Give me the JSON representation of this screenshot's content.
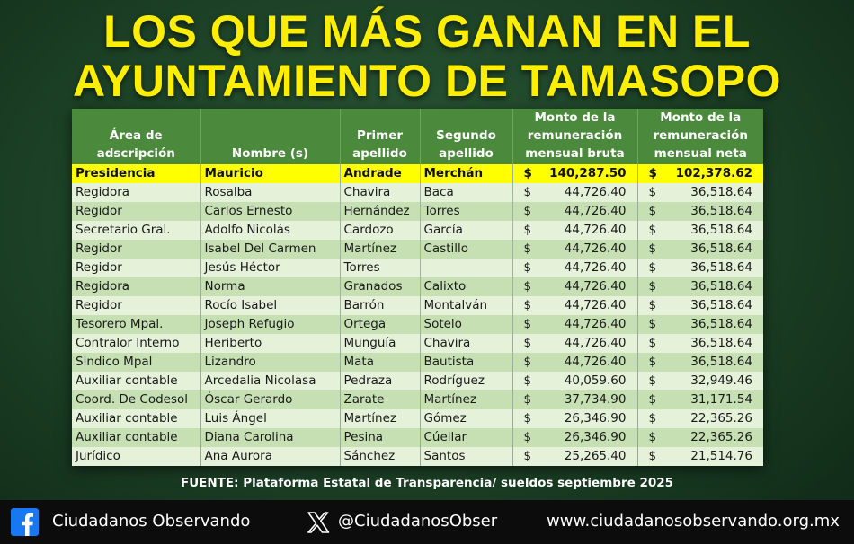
{
  "title": {
    "line1": "LOS QUE MÁS GANAN EN EL",
    "line2": "AYUNTAMIENTO DE TAMASOPO"
  },
  "table": {
    "headers": [
      "Área de adscripción",
      "Nombre (s)",
      "Primer apellido",
      "Segundo apellido",
      "Monto de la remuneración mensual bruta",
      "Monto de la remuneración mensual neta"
    ],
    "currency_symbol": "$",
    "rows": [
      {
        "area": "Presidencia",
        "nombre": "Mauricio",
        "primer": "Andrade",
        "segundo": "Merchán",
        "bruta": "140,287.50",
        "neta": "102,378.62",
        "highlight": true
      },
      {
        "area": "Regidora",
        "nombre": "Rosalba",
        "primer": "Chavira",
        "segundo": "Baca",
        "bruta": "44,726.40",
        "neta": "36,518.64"
      },
      {
        "area": "Regidor",
        "nombre": "Carlos Ernesto",
        "primer": "Hernández",
        "segundo": "Torres",
        "bruta": "44,726.40",
        "neta": "36,518.64"
      },
      {
        "area": "Secretario Gral.",
        "nombre": "Adolfo Nicolás",
        "primer": "Cardozo",
        "segundo": "García",
        "bruta": "44,726.40",
        "neta": "36,518.64"
      },
      {
        "area": "Regidor",
        "nombre": "Isabel Del Carmen",
        "primer": "Martínez",
        "segundo": "Castillo",
        "bruta": "44,726.40",
        "neta": "36,518.64"
      },
      {
        "area": "Regidor",
        "nombre": "Jesús Héctor",
        "primer": "Torres",
        "segundo": "",
        "bruta": "44,726.40",
        "neta": "36,518.64"
      },
      {
        "area": "Regidora",
        "nombre": "Norma",
        "primer": "Granados",
        "segundo": "Calixto",
        "bruta": "44,726.40",
        "neta": "36,518.64"
      },
      {
        "area": "Regidor",
        "nombre": "Rocío Isabel",
        "primer": "Barrón",
        "segundo": "Montalván",
        "bruta": "44,726.40",
        "neta": "36,518.64"
      },
      {
        "area": "Tesorero Mpal.",
        "nombre": "Joseph Refugio",
        "primer": "Ortega",
        "segundo": "Sotelo",
        "bruta": "44,726.40",
        "neta": "36,518.64"
      },
      {
        "area": "Contralor Interno",
        "nombre": "Heriberto",
        "primer": "Munguía",
        "segundo": "Chavira",
        "bruta": "44,726.40",
        "neta": "36,518.64"
      },
      {
        "area": "Sindico Mpal",
        "nombre": "Lizandro",
        "primer": "Mata",
        "segundo": "Bautista",
        "bruta": "44,726.40",
        "neta": "36,518.64"
      },
      {
        "area": "Auxiliar contable",
        "nombre": "Arcedalia Nicolasa",
        "primer": "Pedraza",
        "segundo": "Rodríguez",
        "bruta": "40,059.60",
        "neta": "32,949.46"
      },
      {
        "area": "Coord. De Codesol",
        "nombre": "Óscar Gerardo",
        "primer": "Zarate",
        "segundo": "Martínez",
        "bruta": "37,734.90",
        "neta": "31,171.54"
      },
      {
        "area": "Auxiliar contable",
        "nombre": "Luis Ángel",
        "primer": "Martínez",
        "segundo": "Gómez",
        "bruta": "26,346.90",
        "neta": "22,365.26"
      },
      {
        "area": "Auxiliar contable",
        "nombre": "Diana Carolina",
        "primer": "Pesina",
        "segundo": "Cúellar",
        "bruta": "26,346.90",
        "neta": "22,365.26"
      },
      {
        "area": "Jurídico",
        "nombre": "Ana Aurora",
        "primer": "Sánchez",
        "segundo": "Santos",
        "bruta": "25,265.40",
        "neta": "21,514.76"
      }
    ]
  },
  "source": "FUENTE: Plataforma Estatal de Transparencia/ sueldos septiembre 2025",
  "footer": {
    "facebook_label": "Ciudadanos Observando",
    "x_handle": "@CiudadanosObser",
    "website": "www.ciudadanosobservando.org.mx"
  },
  "colors": {
    "title": "#ffee00",
    "header_bg": "#4b8a3d",
    "highlight_row": "#ffff00",
    "row_light": "#e6f1da",
    "row_dark": "#c6e0b4",
    "facebook": "#1877f2"
  },
  "icons": [
    "facebook-icon",
    "x-icon"
  ]
}
